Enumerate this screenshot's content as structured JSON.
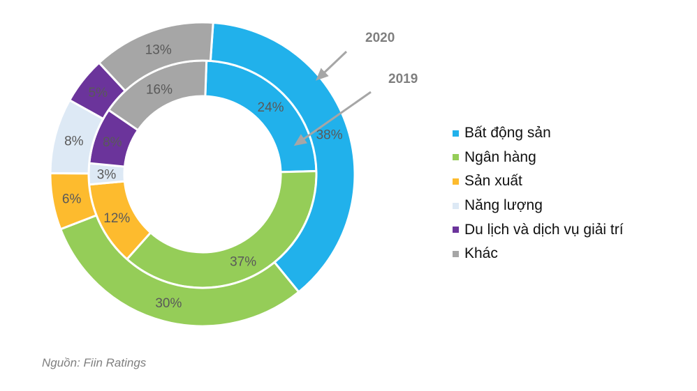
{
  "chart_data": {
    "type": "donut",
    "categories": [
      "Bất động sản",
      "Ngân hàng",
      "Sản xuất",
      "Năng lượng",
      "Du lịch và dịch vụ giải trí",
      "Khác"
    ],
    "colors": [
      "#21b1eb",
      "#95cd58",
      "#fdbb2e",
      "#dde9f5",
      "#6b349b",
      "#a6a6a6"
    ],
    "series": [
      {
        "name": "2019",
        "ring": "inner",
        "values": [
          24,
          37,
          12,
          3,
          8,
          16
        ],
        "labels": [
          "24%",
          "37%",
          "12%",
          "3%",
          "8%",
          "16%"
        ]
      },
      {
        "name": "2020",
        "ring": "outer",
        "values": [
          38,
          30,
          6,
          8,
          5,
          13
        ],
        "labels": [
          "38%",
          "30%",
          "6%",
          "8%",
          "5%",
          "13%"
        ]
      }
    ],
    "legend_position": "right"
  },
  "source": "Nguồn: Fiin Ratings"
}
